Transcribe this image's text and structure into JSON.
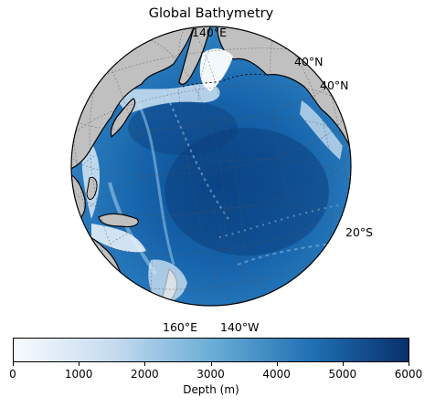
{
  "map": {
    "title": "Global Bathymetry",
    "projection": "orthographic",
    "graticule_labels": [
      {
        "id": "lon-140e-top",
        "text": "140°E"
      },
      {
        "id": "lat-40n-a",
        "text": "40°N"
      },
      {
        "id": "lat-40n-b",
        "text": "40°N"
      },
      {
        "id": "lat-20s",
        "text": "20°S"
      },
      {
        "id": "lon-160e-bottom",
        "text": "160°E"
      },
      {
        "id": "lon-140w-bottom",
        "text": "140°W"
      }
    ],
    "land_color": "#c0c0c0",
    "ocean_colormap": "Blues"
  },
  "colorbar": {
    "label": "Depth (m)",
    "min": 0,
    "max": 6000,
    "ticks": [
      "0",
      "1000",
      "2000",
      "3000",
      "4000",
      "5000",
      "6000"
    ],
    "colors": [
      "#f7fbff",
      "#c6dbef",
      "#6baed6",
      "#2171b5",
      "#08306b"
    ]
  }
}
